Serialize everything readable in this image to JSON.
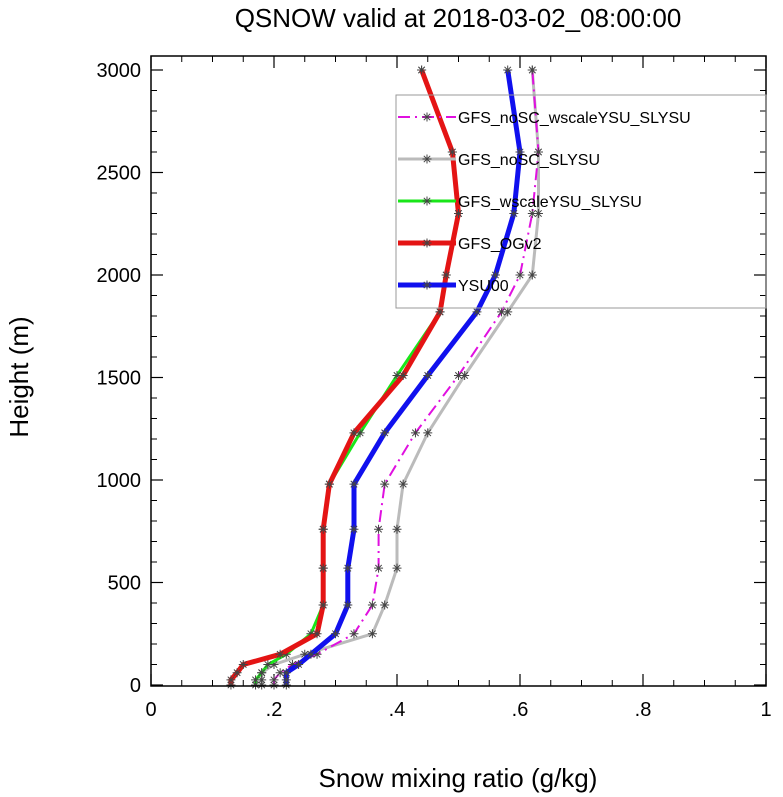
{
  "chart_data": {
    "type": "line",
    "title": "QSNOW valid at 2018-03-02_08:00:00",
    "xlabel": "Snow mixing ratio (g/kg)",
    "ylabel": "Height (m)",
    "xlim": [
      0,
      1
    ],
    "ylim": [
      0,
      3000
    ],
    "xticks": [
      0,
      0.2,
      0.4,
      0.6,
      0.8,
      1
    ],
    "xtick_labels": [
      "0",
      ".2",
      ".4",
      ".6",
      ".8",
      "1"
    ],
    "yticks": [
      0,
      500,
      1000,
      1500,
      2000,
      2500,
      3000
    ],
    "ytick_labels": [
      "0",
      "500",
      "1000",
      "1500",
      "2000",
      "2500",
      "3000"
    ],
    "grid": false,
    "legend_position": "top-right",
    "marker": "asterisk",
    "series": [
      {
        "name": "GFS_noSC_wscaleYSU_SLYSU",
        "color": "#e010e0",
        "dash": "dashed",
        "width": "thin",
        "x": [
          0.2,
          0.2,
          0.21,
          0.23,
          0.27,
          0.33,
          0.36,
          0.37,
          0.37,
          0.38,
          0.43,
          0.5,
          0.57,
          0.6,
          0.62,
          0.63,
          0.62
        ],
        "y": [
          0,
          25,
          60,
          100,
          150,
          250,
          390,
          570,
          760,
          980,
          1230,
          1510,
          1820,
          2000,
          2300,
          2600,
          3000
        ]
      },
      {
        "name": "GFS_noSC_SLYSU",
        "color": "#bbbbbb",
        "dash": "solid",
        "width": "medium",
        "x": [
          0.18,
          0.18,
          0.18,
          0.2,
          0.25,
          0.36,
          0.38,
          0.4,
          0.4,
          0.41,
          0.45,
          0.51,
          0.58,
          0.62,
          0.63,
          0.63,
          0.62
        ],
        "y": [
          0,
          25,
          60,
          100,
          150,
          250,
          390,
          570,
          760,
          980,
          1230,
          1510,
          1820,
          2000,
          2300,
          2600,
          3000
        ]
      },
      {
        "name": "GFS_wscaleYSU_SLYSU",
        "color": "#19e619",
        "dash": "solid",
        "width": "medium",
        "x": [
          0.17,
          0.17,
          0.18,
          0.19,
          0.22,
          0.26,
          0.28,
          0.28,
          0.28,
          0.29,
          0.34,
          0.4,
          0.47,
          0.48,
          0.5,
          0.49,
          0.44
        ],
        "y": [
          0,
          25,
          60,
          100,
          150,
          250,
          390,
          570,
          760,
          980,
          1230,
          1510,
          1820,
          2000,
          2300,
          2600,
          3000
        ]
      },
      {
        "name": "GFS_OGv2",
        "color": "#e41414",
        "dash": "solid",
        "width": "thick",
        "x": [
          0.13,
          0.13,
          0.14,
          0.15,
          0.21,
          0.27,
          0.28,
          0.28,
          0.28,
          0.29,
          0.33,
          0.41,
          0.47,
          0.48,
          0.5,
          0.49,
          0.44
        ],
        "y": [
          0,
          25,
          60,
          100,
          150,
          250,
          390,
          570,
          760,
          980,
          1230,
          1510,
          1820,
          2000,
          2300,
          2600,
          3000
        ]
      },
      {
        "name": "YSU00",
        "color": "#1010ee",
        "dash": "solid",
        "width": "thick",
        "x": [
          0.22,
          0.22,
          0.22,
          0.24,
          0.26,
          0.3,
          0.32,
          0.32,
          0.33,
          0.33,
          0.38,
          0.45,
          0.53,
          0.56,
          0.59,
          0.6,
          0.58
        ],
        "y": [
          0,
          25,
          60,
          100,
          150,
          250,
          390,
          570,
          760,
          980,
          1230,
          1510,
          1820,
          2000,
          2300,
          2600,
          3000
        ]
      }
    ]
  }
}
